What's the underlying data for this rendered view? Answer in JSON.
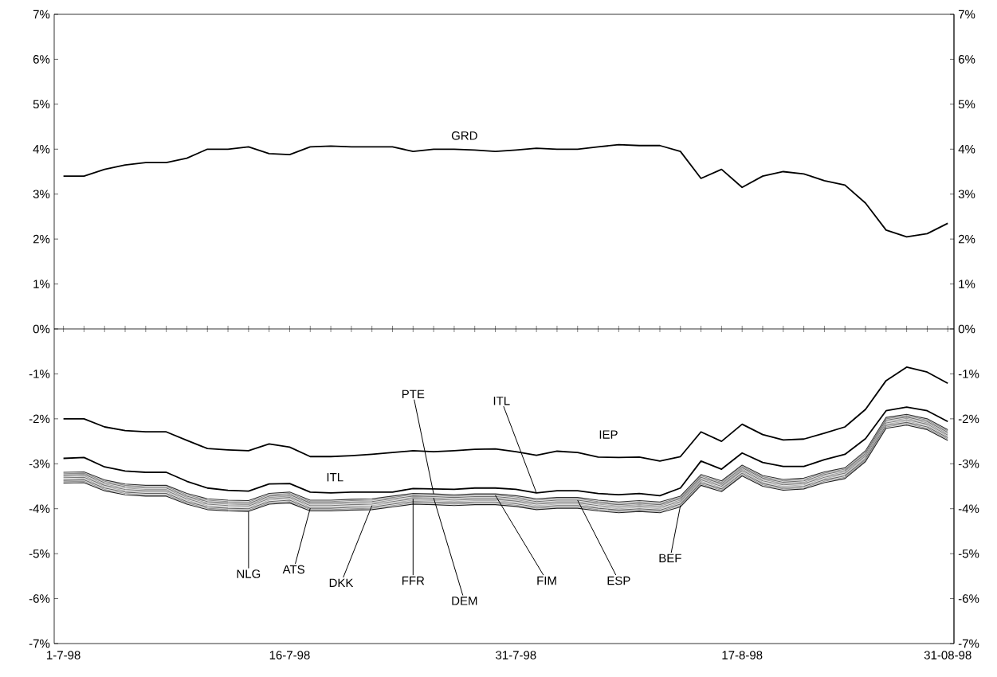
{
  "chart_data": {
    "type": "line",
    "categories": [
      "1-7-98",
      null,
      null,
      null,
      null,
      null,
      null,
      null,
      null,
      null,
      null,
      "16-7-98",
      null,
      null,
      null,
      null,
      null,
      null,
      null,
      null,
      null,
      null,
      "31-7-98",
      null,
      null,
      null,
      null,
      null,
      null,
      null,
      null,
      null,
      null,
      "17-8-98",
      null,
      null,
      null,
      null,
      null,
      null,
      null,
      null,
      null,
      "31-08-98"
    ],
    "series": [
      {
        "name": "GRD",
        "color": "#000000",
        "values": [
          3.4,
          3.4,
          3.55,
          3.65,
          3.7,
          3.7,
          3.8,
          4.0,
          4.0,
          4.05,
          3.9,
          3.88,
          4.05,
          4.07,
          4.05,
          4.05,
          4.05,
          3.95,
          4.0,
          4.0,
          3.98,
          3.95,
          3.98,
          4.02,
          4.0,
          4.0,
          4.05,
          4.1,
          4.08,
          4.08,
          3.95,
          3.35,
          3.55,
          3.15,
          3.4,
          3.5,
          3.45,
          3.3,
          3.2,
          2.8,
          2.2,
          2.05,
          2.12,
          2.35
        ]
      },
      {
        "name": "IEP",
        "color": "#000000",
        "values": [
          -2.0,
          -2.0,
          -2.18,
          -2.26,
          -2.29,
          -2.29,
          -2.48,
          -2.66,
          -2.69,
          -2.71,
          -2.56,
          -2.63,
          -2.84,
          -2.84,
          -2.82,
          -2.79,
          -2.75,
          -2.71,
          -2.73,
          -2.71,
          -2.68,
          -2.67,
          -2.73,
          -2.81,
          -2.72,
          -2.75,
          -2.85,
          -2.86,
          -2.85,
          -2.94,
          -2.84,
          -2.29,
          -2.5,
          -2.12,
          -2.35,
          -2.47,
          -2.45,
          -2.32,
          -2.18,
          -1.79,
          -1.15,
          -0.85,
          -0.96,
          -1.21
        ]
      },
      {
        "name": "ITL",
        "color": "#000000",
        "values": [
          -2.88,
          -2.86,
          -3.07,
          -3.16,
          -3.19,
          -3.19,
          -3.39,
          -3.54,
          -3.59,
          -3.61,
          -3.45,
          -3.44,
          -3.63,
          -3.65,
          -3.63,
          -3.63,
          -3.63,
          -3.55,
          -3.56,
          -3.57,
          -3.54,
          -3.54,
          -3.57,
          -3.65,
          -3.6,
          -3.6,
          -3.66,
          -3.69,
          -3.66,
          -3.71,
          -3.54,
          -2.94,
          -3.12,
          -2.76,
          -2.97,
          -3.06,
          -3.06,
          -2.91,
          -2.79,
          -2.44,
          -1.82,
          -1.74,
          -1.82,
          -2.06
        ]
      },
      {
        "name": "PTE",
        "color": "#303030",
        "values": [
          -3.19,
          -3.18,
          -3.36,
          -3.45,
          -3.48,
          -3.48,
          -3.66,
          -3.78,
          -3.81,
          -3.82,
          -3.66,
          -3.63,
          -3.81,
          -3.81,
          -3.79,
          -3.78,
          -3.72,
          -3.66,
          -3.67,
          -3.69,
          -3.67,
          -3.67,
          -3.71,
          -3.78,
          -3.75,
          -3.75,
          -3.81,
          -3.85,
          -3.82,
          -3.85,
          -3.72,
          -3.24,
          -3.38,
          -3.03,
          -3.26,
          -3.35,
          -3.32,
          -3.18,
          -3.09,
          -2.71,
          -1.97,
          -1.9,
          -2.0,
          -2.24
        ]
      },
      {
        "name": "FIM",
        "color": "#8c8c8c",
        "values": [
          -3.22,
          -3.21,
          -3.39,
          -3.48,
          -3.51,
          -3.51,
          -3.69,
          -3.81,
          -3.84,
          -3.85,
          -3.69,
          -3.66,
          -3.84,
          -3.84,
          -3.82,
          -3.81,
          -3.75,
          -3.69,
          -3.7,
          -3.72,
          -3.7,
          -3.7,
          -3.74,
          -3.81,
          -3.78,
          -3.78,
          -3.84,
          -3.88,
          -3.85,
          -3.88,
          -3.75,
          -3.27,
          -3.41,
          -3.06,
          -3.29,
          -3.38,
          -3.35,
          -3.21,
          -3.12,
          -2.74,
          -2.0,
          -1.93,
          -2.03,
          -2.27
        ]
      },
      {
        "name": "ESP",
        "color": "#6e6e6e",
        "values": [
          -3.25,
          -3.24,
          -3.42,
          -3.51,
          -3.54,
          -3.54,
          -3.72,
          -3.84,
          -3.87,
          -3.88,
          -3.72,
          -3.69,
          -3.87,
          -3.87,
          -3.85,
          -3.84,
          -3.78,
          -3.72,
          -3.73,
          -3.75,
          -3.73,
          -3.73,
          -3.77,
          -3.84,
          -3.81,
          -3.81,
          -3.87,
          -3.91,
          -3.88,
          -3.91,
          -3.78,
          -3.3,
          -3.44,
          -3.09,
          -3.32,
          -3.41,
          -3.38,
          -3.24,
          -3.15,
          -2.77,
          -2.03,
          -1.96,
          -2.06,
          -2.3
        ]
      },
      {
        "name": "DEM",
        "color": "#a0a0a0",
        "values": [
          -3.28,
          -3.27,
          -3.45,
          -3.54,
          -3.57,
          -3.57,
          -3.75,
          -3.87,
          -3.9,
          -3.91,
          -3.75,
          -3.72,
          -3.9,
          -3.9,
          -3.88,
          -3.87,
          -3.81,
          -3.75,
          -3.76,
          -3.78,
          -3.76,
          -3.76,
          -3.8,
          -3.87,
          -3.84,
          -3.84,
          -3.9,
          -3.94,
          -3.91,
          -3.94,
          -3.81,
          -3.33,
          -3.47,
          -3.12,
          -3.35,
          -3.44,
          -3.41,
          -3.27,
          -3.18,
          -2.8,
          -2.06,
          -1.99,
          -2.09,
          -2.33
        ]
      },
      {
        "name": "FFR",
        "color": "#7a7a7a",
        "values": [
          -3.31,
          -3.3,
          -3.48,
          -3.57,
          -3.6,
          -3.6,
          -3.78,
          -3.9,
          -3.93,
          -3.94,
          -3.78,
          -3.75,
          -3.93,
          -3.93,
          -3.91,
          -3.9,
          -3.84,
          -3.78,
          -3.79,
          -3.81,
          -3.79,
          -3.79,
          -3.83,
          -3.9,
          -3.87,
          -3.87,
          -3.93,
          -3.97,
          -3.94,
          -3.97,
          -3.84,
          -3.36,
          -3.5,
          -3.15,
          -3.38,
          -3.47,
          -3.44,
          -3.3,
          -3.21,
          -2.83,
          -2.09,
          -2.02,
          -2.12,
          -2.36
        ]
      },
      {
        "name": "DKK",
        "color": "#b4b4b4",
        "values": [
          -3.34,
          -3.33,
          -3.51,
          -3.6,
          -3.63,
          -3.63,
          -3.81,
          -3.93,
          -3.96,
          -3.97,
          -3.81,
          -3.78,
          -3.96,
          -3.96,
          -3.94,
          -3.93,
          -3.87,
          -3.81,
          -3.82,
          -3.84,
          -3.82,
          -3.82,
          -3.86,
          -3.93,
          -3.9,
          -3.9,
          -3.96,
          -4.0,
          -3.97,
          -4.0,
          -3.87,
          -3.39,
          -3.53,
          -3.18,
          -3.41,
          -3.5,
          -3.47,
          -3.33,
          -3.24,
          -2.86,
          -2.12,
          -2.05,
          -2.15,
          -2.39
        ]
      },
      {
        "name": "ATS",
        "color": "#646464",
        "values": [
          -3.37,
          -3.36,
          -3.54,
          -3.63,
          -3.66,
          -3.66,
          -3.84,
          -3.96,
          -3.99,
          -4.0,
          -3.84,
          -3.81,
          -3.99,
          -3.99,
          -3.97,
          -3.96,
          -3.9,
          -3.84,
          -3.85,
          -3.87,
          -3.85,
          -3.85,
          -3.89,
          -3.96,
          -3.93,
          -3.93,
          -3.99,
          -4.03,
          -4.0,
          -4.03,
          -3.9,
          -3.42,
          -3.56,
          -3.21,
          -3.44,
          -3.53,
          -3.5,
          -3.36,
          -3.27,
          -2.89,
          -2.15,
          -2.08,
          -2.18,
          -2.42
        ]
      },
      {
        "name": "BEF",
        "color": "#969696",
        "values": [
          -3.4,
          -3.39,
          -3.57,
          -3.66,
          -3.69,
          -3.69,
          -3.87,
          -3.99,
          -4.02,
          -4.03,
          -3.87,
          -3.84,
          -4.02,
          -4.02,
          -4.0,
          -3.99,
          -3.93,
          -3.87,
          -3.88,
          -3.9,
          -3.88,
          -3.88,
          -3.92,
          -3.99,
          -3.96,
          -3.96,
          -4.02,
          -4.06,
          -4.03,
          -4.06,
          -3.93,
          -3.45,
          -3.59,
          -3.24,
          -3.47,
          -3.56,
          -3.53,
          -3.39,
          -3.3,
          -2.92,
          -2.18,
          -2.11,
          -2.21,
          -2.45
        ]
      },
      {
        "name": "NLG",
        "color": "#202020",
        "values": [
          -3.43,
          -3.42,
          -3.6,
          -3.69,
          -3.72,
          -3.72,
          -3.9,
          -4.02,
          -4.05,
          -4.06,
          -3.9,
          -3.87,
          -4.05,
          -4.05,
          -4.03,
          -4.02,
          -3.96,
          -3.9,
          -3.91,
          -3.93,
          -3.91,
          -3.91,
          -3.95,
          -4.02,
          -3.99,
          -3.99,
          -4.05,
          -4.09,
          -4.06,
          -4.09,
          -3.96,
          -3.48,
          -3.62,
          -3.27,
          -3.5,
          -3.59,
          -3.56,
          -3.42,
          -3.33,
          -2.95,
          -2.21,
          -2.14,
          -2.24,
          -2.48
        ]
      }
    ],
    "ylim": [
      -7,
      7
    ],
    "yticks": [
      {
        "value": -7,
        "label": "-7%"
      },
      {
        "value": -6,
        "label": "-6%"
      },
      {
        "value": -5,
        "label": "-5%"
      },
      {
        "value": -4,
        "label": "-4%"
      },
      {
        "value": -3,
        "label": "-3%"
      },
      {
        "value": -2,
        "label": "-2%"
      },
      {
        "value": -1,
        "label": "-1%"
      },
      {
        "value": 0,
        "label": "0%"
      },
      {
        "value": 1,
        "label": "1%"
      },
      {
        "value": 2,
        "label": "2%"
      },
      {
        "value": 3,
        "label": "3%"
      },
      {
        "value": 4,
        "label": "4%"
      },
      {
        "value": 5,
        "label": "5%"
      },
      {
        "value": 6,
        "label": "6%"
      },
      {
        "value": 7,
        "label": "7%"
      }
    ],
    "y2lim": [
      -7,
      7
    ],
    "y2ticks": [
      {
        "value": -7,
        "label": "-7%"
      },
      {
        "value": -6,
        "label": "-6%"
      },
      {
        "value": -5,
        "label": "-5%"
      },
      {
        "value": -4,
        "label": "-4%"
      },
      {
        "value": -3,
        "label": "-3%"
      },
      {
        "value": -2,
        "label": "-2%"
      },
      {
        "value": -1,
        "label": "-1%"
      },
      {
        "value": 0,
        "label": "0%"
      },
      {
        "value": 1,
        "label": "1%"
      },
      {
        "value": 2,
        "label": "2%"
      },
      {
        "value": 3,
        "label": "3%"
      },
      {
        "value": 4,
        "label": "4%"
      },
      {
        "value": 5,
        "label": "5%"
      },
      {
        "value": 6,
        "label": "6%"
      },
      {
        "value": 7,
        "label": "7%"
      }
    ],
    "ref_lines": [
      {
        "axis": "y",
        "value": 0
      }
    ]
  }
}
